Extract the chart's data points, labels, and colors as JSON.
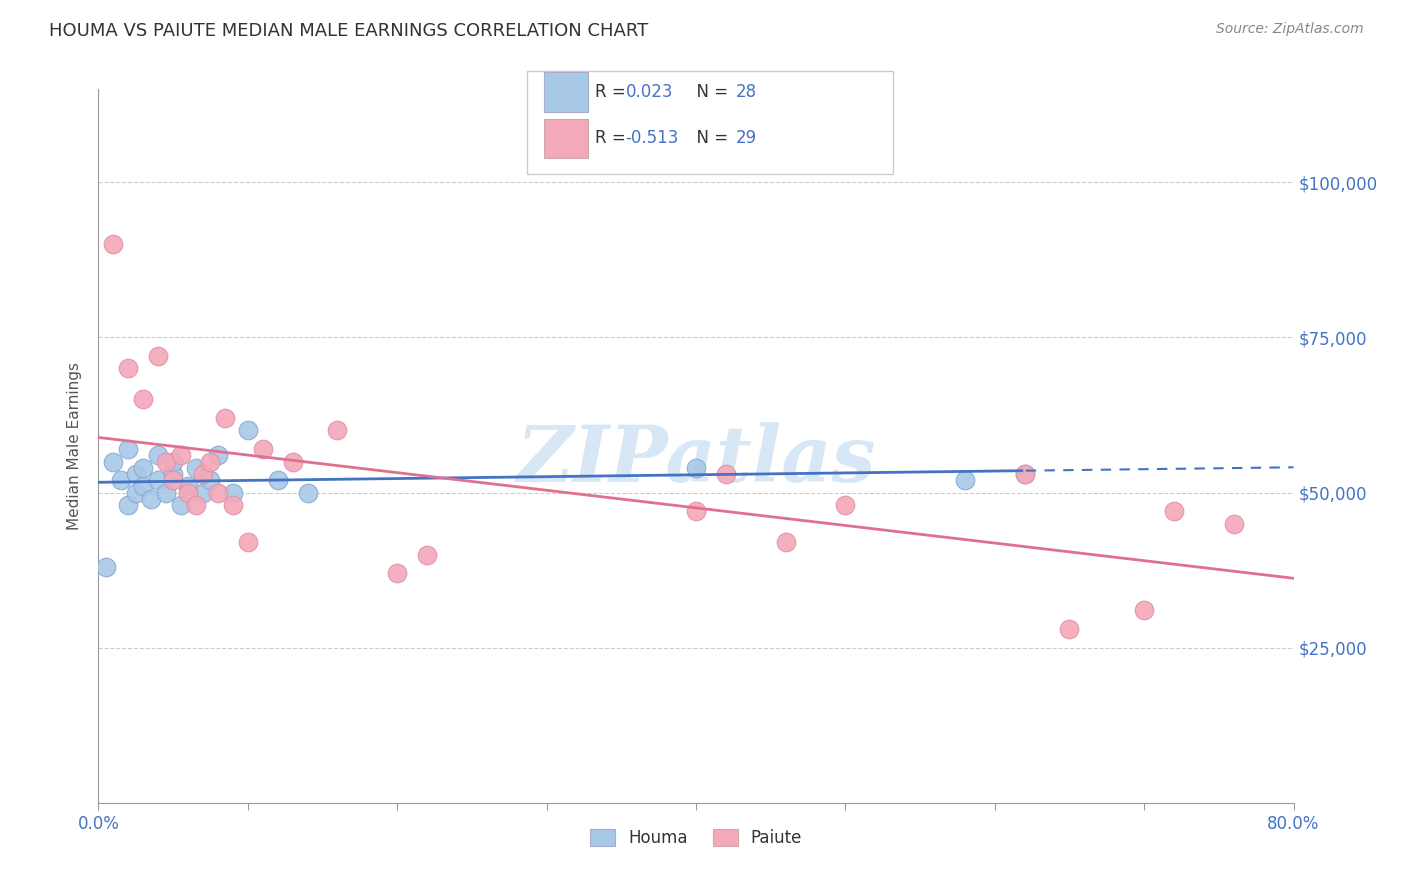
{
  "title": "HOUMA VS PAIUTE MEDIAN MALE EARNINGS CORRELATION CHART",
  "source": "Source: ZipAtlas.com",
  "xlabel_houma": "Houma",
  "xlabel_paiute": "Paiute",
  "ylabel": "Median Male Earnings",
  "xmin": 0.0,
  "xmax": 0.8,
  "ymin": 0,
  "ymax": 115000,
  "yticks": [
    25000,
    50000,
    75000,
    100000
  ],
  "ytick_labels": [
    "$25,000",
    "$50,000",
    "$75,000",
    "$100,000"
  ],
  "xtick_positions": [
    0.0,
    0.1,
    0.2,
    0.3,
    0.4,
    0.5,
    0.6,
    0.7,
    0.8
  ],
  "xedge_labels": [
    "0.0%",
    "80.0%"
  ],
  "houma_R": 0.023,
  "houma_N": 28,
  "paiute_R": -0.513,
  "paiute_N": 29,
  "houma_color": "#a8c8e8",
  "paiute_color": "#f4a8b8",
  "houma_line_color": "#4472c4",
  "paiute_line_color": "#e07090",
  "houma_scatter_edge": "#88aad0",
  "paiute_scatter_edge": "#e090a8",
  "watermark": "ZIPatlas",
  "houma_x": [
    0.005,
    0.01,
    0.015,
    0.02,
    0.02,
    0.025,
    0.025,
    0.03,
    0.03,
    0.035,
    0.04,
    0.04,
    0.045,
    0.05,
    0.05,
    0.055,
    0.06,
    0.065,
    0.07,
    0.075,
    0.08,
    0.09,
    0.1,
    0.12,
    0.14,
    0.4,
    0.58,
    0.62
  ],
  "houma_y": [
    38000,
    55000,
    52000,
    48000,
    57000,
    50000,
    53000,
    51000,
    54000,
    49000,
    52000,
    56000,
    50000,
    53000,
    55000,
    48000,
    51000,
    54000,
    50000,
    52000,
    56000,
    50000,
    60000,
    52000,
    50000,
    54000,
    52000,
    53000
  ],
  "paiute_x": [
    0.01,
    0.02,
    0.03,
    0.04,
    0.045,
    0.05,
    0.055,
    0.06,
    0.065,
    0.07,
    0.075,
    0.08,
    0.085,
    0.09,
    0.1,
    0.11,
    0.13,
    0.16,
    0.2,
    0.22,
    0.4,
    0.42,
    0.46,
    0.5,
    0.62,
    0.65,
    0.7,
    0.72,
    0.76
  ],
  "paiute_y": [
    90000,
    70000,
    65000,
    72000,
    55000,
    52000,
    56000,
    50000,
    48000,
    53000,
    55000,
    50000,
    62000,
    48000,
    42000,
    57000,
    55000,
    60000,
    37000,
    40000,
    47000,
    53000,
    42000,
    48000,
    53000,
    28000,
    31000,
    47000,
    45000
  ]
}
